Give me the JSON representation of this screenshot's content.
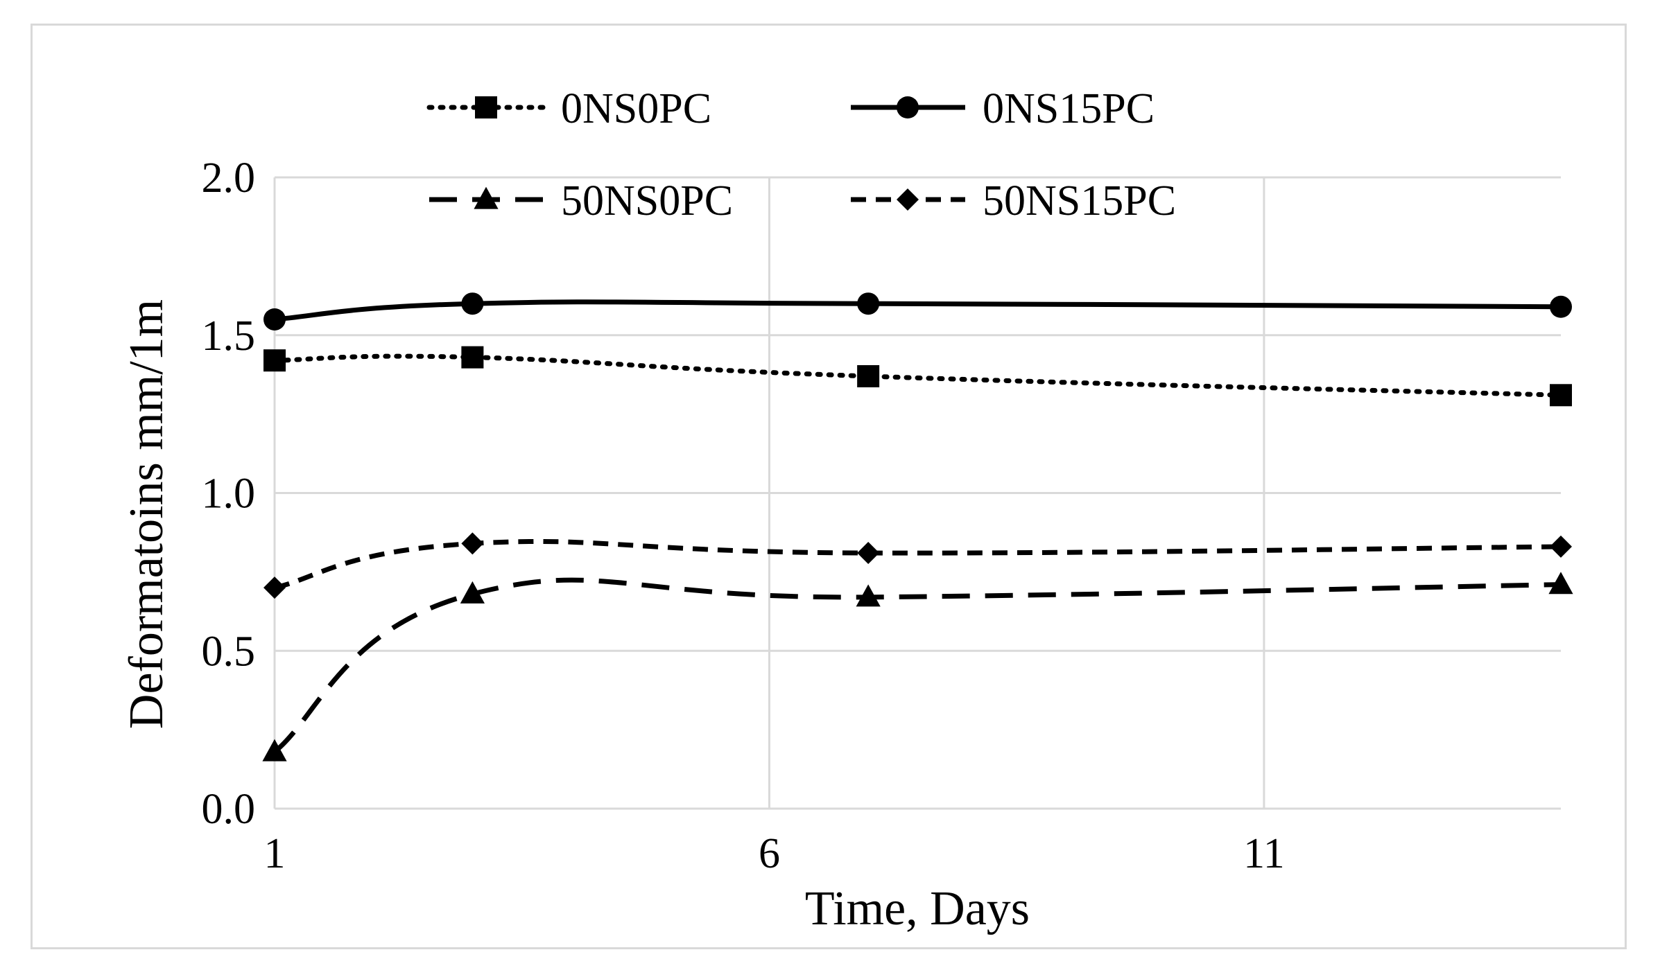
{
  "chart_data": {
    "type": "line",
    "title": "",
    "xlabel": "Time, Days",
    "ylabel": "Deformatoins mm/1m",
    "x_ticks": [
      "1",
      "6",
      "11"
    ],
    "y_ticks": [
      "0.0",
      "0.5",
      "1.0",
      "1.5",
      "2.0"
    ],
    "xlim": [
      1,
      14
    ],
    "ylim": [
      0,
      2
    ],
    "grid": "both",
    "legend_position": "top",
    "x": [
      1,
      3,
      7,
      14
    ],
    "series": [
      {
        "name": "0NS0PC",
        "values": [
          1.42,
          1.43,
          1.37,
          1.31
        ],
        "marker": "square",
        "line": "dotted",
        "color": "#000000"
      },
      {
        "name": "0NS15PC",
        "values": [
          1.55,
          1.6,
          1.6,
          1.59
        ],
        "marker": "circle",
        "line": "solid",
        "color": "#000000"
      },
      {
        "name": "50NS0PC",
        "values": [
          0.18,
          0.68,
          0.67,
          0.71
        ],
        "marker": "triangle",
        "line": "long-dash",
        "color": "#000000"
      },
      {
        "name": "50NS15PC",
        "values": [
          0.7,
          0.84,
          0.81,
          0.83
        ],
        "marker": "diamond",
        "line": "short-dash",
        "color": "#000000"
      }
    ]
  }
}
